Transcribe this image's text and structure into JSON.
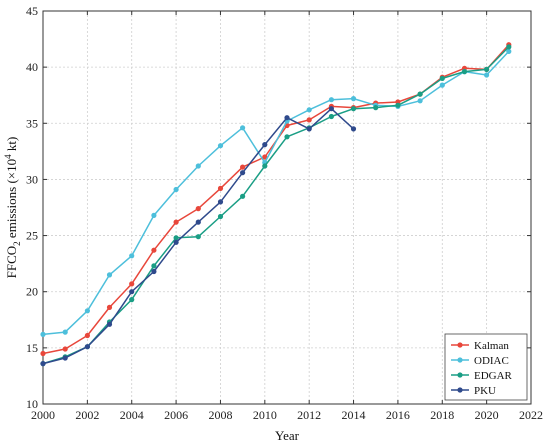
{
  "chart_data": {
    "type": "line",
    "title": "",
    "xlabel": "Year",
    "ylabel_parts": {
      "pre": "FFCO",
      "sub": "2",
      "mid": " emissions (×10",
      "sup": "4",
      "post": " kt)"
    },
    "xlim": [
      2000,
      2022
    ],
    "ylim": [
      10,
      45
    ],
    "xticks": [
      2000,
      2002,
      2004,
      2006,
      2008,
      2010,
      2012,
      2014,
      2016,
      2018,
      2020,
      2022
    ],
    "yticks": [
      10,
      15,
      20,
      25,
      30,
      35,
      40,
      45
    ],
    "grid": true,
    "legend_position": "bottom-right",
    "series": [
      {
        "name": "Kalman",
        "color": "#e8473b",
        "x": [
          2000,
          2001,
          2002,
          2003,
          2004,
          2005,
          2006,
          2007,
          2008,
          2009,
          2010,
          2011,
          2012,
          2013,
          2014,
          2015,
          2016,
          2017,
          2018,
          2019,
          2020,
          2021
        ],
        "y": [
          14.5,
          14.9,
          16.1,
          18.6,
          20.7,
          23.7,
          26.2,
          27.4,
          29.2,
          31.1,
          32.0,
          34.8,
          35.3,
          36.5,
          36.4,
          36.8,
          36.9,
          37.6,
          39.1,
          39.9,
          39.8,
          42.0
        ]
      },
      {
        "name": "ODIAC",
        "color": "#4dbfdb",
        "x": [
          2000,
          2001,
          2002,
          2003,
          2004,
          2005,
          2006,
          2007,
          2008,
          2009,
          2010,
          2011,
          2012,
          2013,
          2014,
          2015,
          2016,
          2017,
          2018,
          2019,
          2020,
          2021
        ],
        "y": [
          16.2,
          16.4,
          18.3,
          21.5,
          23.2,
          26.8,
          29.1,
          31.2,
          33.0,
          34.6,
          31.5,
          35.2,
          36.2,
          37.1,
          37.2,
          36.6,
          36.5,
          37.0,
          38.4,
          39.6,
          39.3,
          41.4
        ]
      },
      {
        "name": "EDGAR",
        "color": "#1a9e85",
        "x": [
          2000,
          2001,
          2002,
          2003,
          2004,
          2005,
          2006,
          2007,
          2008,
          2009,
          2010,
          2011,
          2012,
          2013,
          2014,
          2015,
          2016,
          2017,
          2018,
          2019,
          2020,
          2021
        ],
        "y": [
          13.6,
          14.2,
          15.1,
          17.3,
          19.3,
          22.3,
          24.8,
          24.9,
          26.7,
          28.5,
          31.2,
          33.8,
          34.6,
          35.6,
          36.3,
          36.4,
          36.6,
          37.6,
          39.0,
          39.6,
          39.8,
          41.8
        ]
      },
      {
        "name": "PKU",
        "color": "#2f4a8c",
        "x": [
          2000,
          2001,
          2002,
          2003,
          2004,
          2005,
          2006,
          2007,
          2008,
          2009,
          2010,
          2011,
          2012,
          2013,
          2014
        ],
        "y": [
          13.6,
          14.1,
          15.1,
          17.1,
          20.0,
          21.8,
          24.4,
          26.2,
          28.0,
          30.6,
          33.1,
          35.5,
          34.5,
          36.3,
          34.5
        ]
      }
    ]
  }
}
